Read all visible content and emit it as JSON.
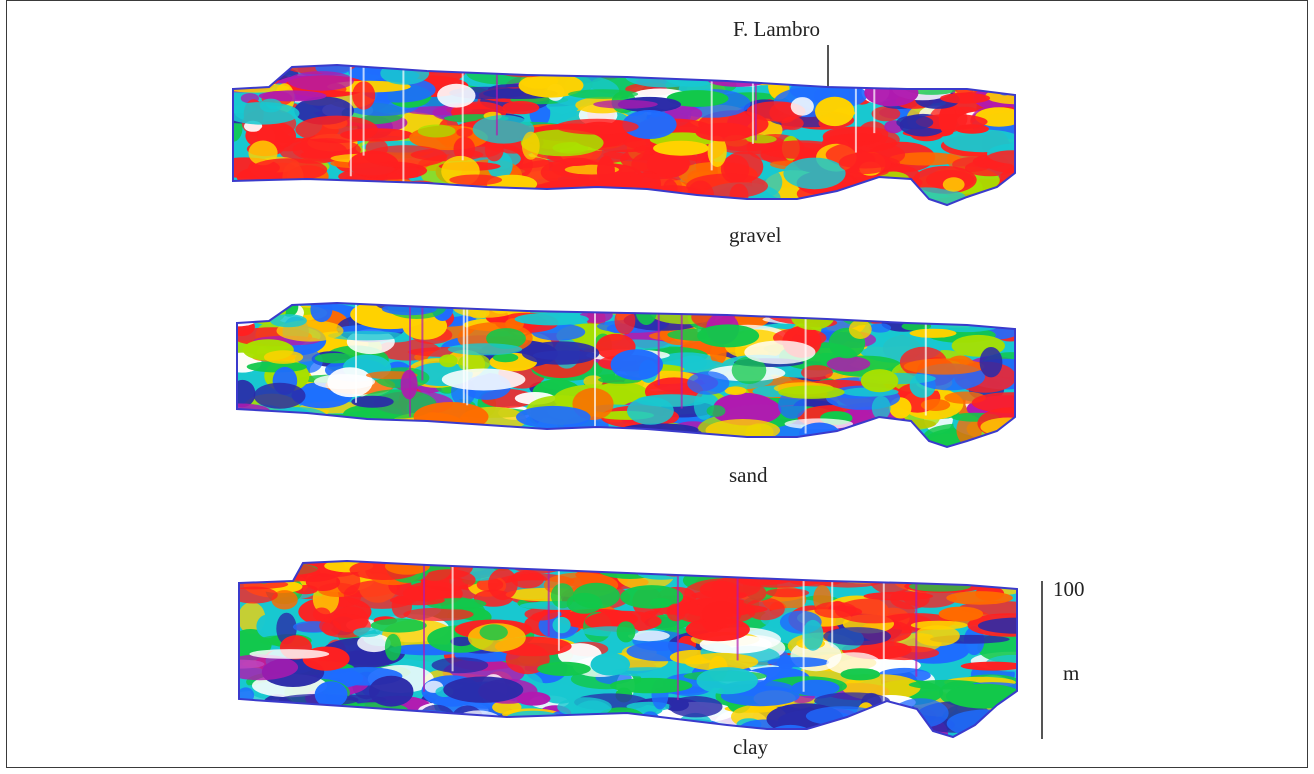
{
  "labels": {
    "river": "F. Lambro",
    "gravel": "gravel",
    "sand": "sand",
    "clay": "clay"
  },
  "scale": {
    "value": "100",
    "unit": "m"
  },
  "colors": {
    "palette": [
      "#ff2020",
      "#ff6a00",
      "#ffd200",
      "#a8e000",
      "#12c84a",
      "#18c8d0",
      "#1e6cff",
      "#2a2aa8",
      "#b01ab0",
      "#ffffff"
    ],
    "outline": "#3a3acc"
  }
}
